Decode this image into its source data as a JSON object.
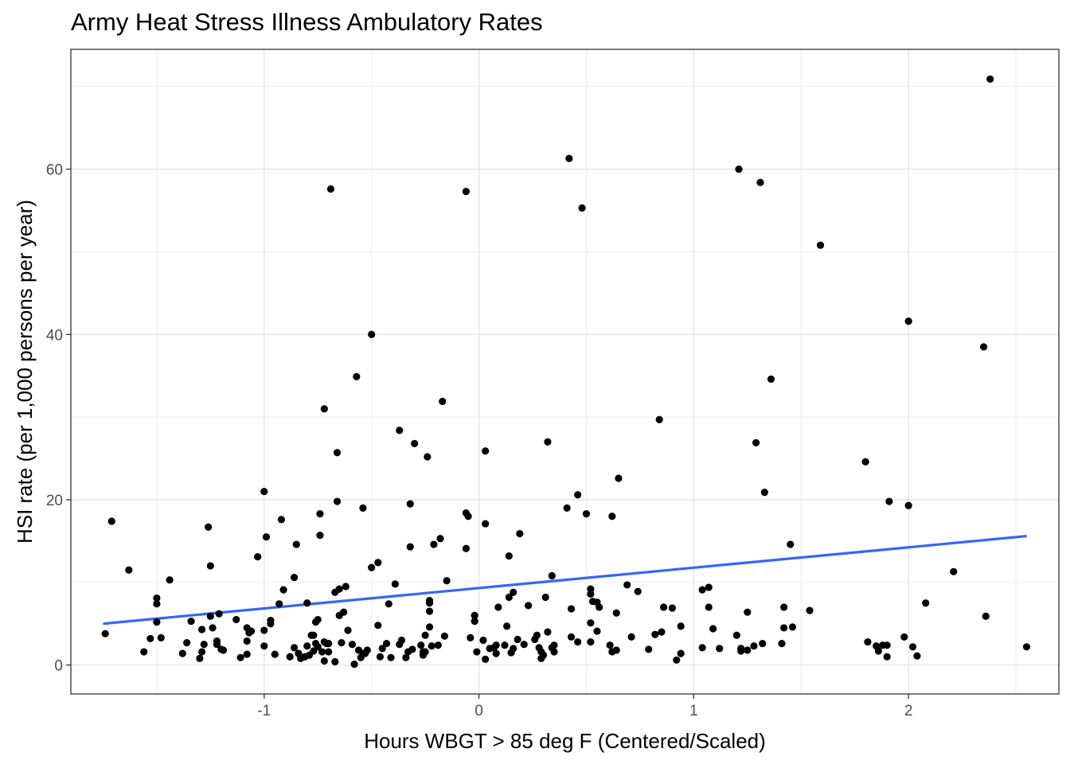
{
  "chart_data": {
    "type": "scatter",
    "title": "Army Heat Stress Illness Ambulatory Rates",
    "xlabel": "Hours WBGT > 85 deg F (Centered/Scaled)",
    "ylabel": "HSI rate (per 1,000 persons per year)",
    "xlim": [
      -1.9,
      2.7
    ],
    "ylim": [
      -3.5,
      74.5
    ],
    "x_ticks": [
      -1,
      0,
      1,
      2
    ],
    "x_tick_labels": [
      "-1",
      "0",
      "1",
      "2"
    ],
    "y_ticks": [
      0,
      20,
      40,
      60
    ],
    "y_tick_labels": [
      "0",
      "20",
      "40",
      "60"
    ],
    "grid": true,
    "point_color": "#000000",
    "trend_color": "#3366FF",
    "trend_line": {
      "x": [
        -1.75,
        2.55
      ],
      "y": [
        5.0,
        15.6
      ]
    },
    "points": [
      [
        -1.74,
        3.8
      ],
      [
        -1.71,
        17.4
      ],
      [
        -1.63,
        11.5
      ],
      [
        -1.56,
        1.6
      ],
      [
        -1.53,
        3.2
      ],
      [
        -1.5,
        8.1
      ],
      [
        -1.5,
        7.4
      ],
      [
        -1.5,
        5.2
      ],
      [
        -1.48,
        3.3
      ],
      [
        -1.44,
        10.3
      ],
      [
        -1.38,
        1.4
      ],
      [
        -1.36,
        2.7
      ],
      [
        -1.34,
        5.3
      ],
      [
        -1.3,
        0.8
      ],
      [
        -1.29,
        1.6
      ],
      [
        -1.29,
        4.3
      ],
      [
        -1.28,
        2.5
      ],
      [
        -1.26,
        16.7
      ],
      [
        -1.25,
        5.9
      ],
      [
        -1.25,
        12.0
      ],
      [
        -1.24,
        4.5
      ],
      [
        -1.22,
        2.9
      ],
      [
        -1.22,
        2.5
      ],
      [
        -1.21,
        6.2
      ],
      [
        -1.2,
        1.9
      ],
      [
        -1.19,
        1.8
      ],
      [
        -1.13,
        5.5
      ],
      [
        -1.11,
        0.9
      ],
      [
        -1.08,
        1.3
      ],
      [
        -1.08,
        2.9
      ],
      [
        -1.08,
        4.5
      ],
      [
        -1.07,
        3.9
      ],
      [
        -1.06,
        4.1
      ],
      [
        -1.03,
        13.1
      ],
      [
        -1.0,
        2.3
      ],
      [
        -1.0,
        21.0
      ],
      [
        -1.0,
        4.2
      ],
      [
        -0.99,
        15.5
      ],
      [
        -0.97,
        5.0
      ],
      [
        -0.97,
        5.4
      ],
      [
        -0.95,
        1.3
      ],
      [
        -0.93,
        7.4
      ],
      [
        -0.92,
        17.6
      ],
      [
        -0.91,
        9.1
      ],
      [
        -0.88,
        1.0
      ],
      [
        -0.86,
        2.1
      ],
      [
        -0.86,
        10.6
      ],
      [
        -0.85,
        14.6
      ],
      [
        -0.84,
        1.4
      ],
      [
        -0.83,
        0.8
      ],
      [
        -0.81,
        1.0
      ],
      [
        -0.8,
        2.3
      ],
      [
        -0.8,
        7.5
      ],
      [
        -0.79,
        1.2
      ],
      [
        -0.78,
        3.6
      ],
      [
        -0.77,
        3.6
      ],
      [
        -0.77,
        1.7
      ],
      [
        -0.76,
        2.6
      ],
      [
        -0.76,
        5.2
      ],
      [
        -0.75,
        5.5
      ],
      [
        -0.75,
        2.2
      ],
      [
        -0.74,
        15.7
      ],
      [
        -0.74,
        18.3
      ],
      [
        -0.73,
        1.6
      ],
      [
        -0.72,
        0.5
      ],
      [
        -0.72,
        2.8
      ],
      [
        -0.72,
        31.0
      ],
      [
        -0.71,
        2.6
      ],
      [
        -0.7,
        1.6
      ],
      [
        -0.7,
        2.6
      ],
      [
        -0.69,
        57.6
      ],
      [
        -0.67,
        0.4
      ],
      [
        -0.67,
        8.8
      ],
      [
        -0.66,
        19.8
      ],
      [
        -0.66,
        25.7
      ],
      [
        -0.65,
        6.0
      ],
      [
        -0.65,
        9.2
      ],
      [
        -0.64,
        2.7
      ],
      [
        -0.63,
        6.4
      ],
      [
        -0.62,
        9.5
      ],
      [
        -0.61,
        4.2
      ],
      [
        -0.59,
        2.5
      ],
      [
        -0.58,
        0.1
      ],
      [
        -0.57,
        34.9
      ],
      [
        -0.56,
        1.8
      ],
      [
        -0.55,
        0.9
      ],
      [
        -0.54,
        1.4
      ],
      [
        -0.54,
        19.0
      ],
      [
        -0.53,
        1.4
      ],
      [
        -0.52,
        1.8
      ],
      [
        -0.5,
        11.8
      ],
      [
        -0.5,
        40.0
      ],
      [
        -0.47,
        4.8
      ],
      [
        -0.47,
        12.4
      ],
      [
        -0.46,
        1.0
      ],
      [
        -0.45,
        2.0
      ],
      [
        -0.43,
        2.6
      ],
      [
        -0.42,
        7.4
      ],
      [
        -0.41,
        0.9
      ],
      [
        -0.39,
        9.8
      ],
      [
        -0.37,
        28.4
      ],
      [
        -0.37,
        2.5
      ],
      [
        -0.36,
        3.0
      ],
      [
        -0.34,
        0.9
      ],
      [
        -0.33,
        1.6
      ],
      [
        -0.32,
        14.3
      ],
      [
        -0.32,
        19.5
      ],
      [
        -0.31,
        1.9
      ],
      [
        -0.3,
        26.8
      ],
      [
        -0.27,
        2.4
      ],
      [
        -0.26,
        1.6
      ],
      [
        -0.26,
        1.2
      ],
      [
        -0.25,
        3.6
      ],
      [
        -0.25,
        1.6
      ],
      [
        -0.24,
        25.2
      ],
      [
        -0.23,
        6.5
      ],
      [
        -0.23,
        7.5
      ],
      [
        -0.23,
        7.8
      ],
      [
        -0.23,
        4.6
      ],
      [
        -0.22,
        2.3
      ],
      [
        -0.21,
        14.6
      ],
      [
        -0.19,
        2.4
      ],
      [
        -0.18,
        15.3
      ],
      [
        -0.17,
        31.9
      ],
      [
        -0.16,
        3.5
      ],
      [
        -0.15,
        10.2
      ],
      [
        -0.06,
        18.4
      ],
      [
        -0.06,
        14.1
      ],
      [
        -0.06,
        57.3
      ],
      [
        -0.05,
        18.0
      ],
      [
        -0.04,
        3.3
      ],
      [
        -0.02,
        6.0
      ],
      [
        -0.02,
        5.3
      ],
      [
        -0.01,
        1.6
      ],
      [
        0.02,
        3.0
      ],
      [
        0.03,
        0.7
      ],
      [
        0.03,
        17.1
      ],
      [
        0.03,
        25.9
      ],
      [
        0.05,
        2.0
      ],
      [
        0.07,
        2.1
      ],
      [
        0.08,
        1.4
      ],
      [
        0.08,
        2.4
      ],
      [
        0.09,
        7.0
      ],
      [
        0.12,
        2.4
      ],
      [
        0.13,
        4.7
      ],
      [
        0.14,
        13.2
      ],
      [
        0.14,
        8.2
      ],
      [
        0.15,
        1.5
      ],
      [
        0.16,
        8.8
      ],
      [
        0.16,
        2.0
      ],
      [
        0.18,
        3.1
      ],
      [
        0.19,
        15.9
      ],
      [
        0.21,
        2.5
      ],
      [
        0.23,
        7.2
      ],
      [
        0.26,
        3.1
      ],
      [
        0.27,
        3.6
      ],
      [
        0.28,
        2.1
      ],
      [
        0.29,
        1.6
      ],
      [
        0.29,
        0.8
      ],
      [
        0.3,
        1.2
      ],
      [
        0.31,
        8.2
      ],
      [
        0.32,
        27.0
      ],
      [
        0.32,
        4.0
      ],
      [
        0.34,
        10.8
      ],
      [
        0.34,
        2.1
      ],
      [
        0.35,
        2.4
      ],
      [
        0.35,
        1.6
      ],
      [
        0.41,
        19.0
      ],
      [
        0.42,
        61.3
      ],
      [
        0.43,
        3.4
      ],
      [
        0.43,
        6.8
      ],
      [
        0.46,
        20.6
      ],
      [
        0.46,
        2.8
      ],
      [
        0.48,
        55.3
      ],
      [
        0.5,
        18.3
      ],
      [
        0.52,
        9.2
      ],
      [
        0.52,
        8.6
      ],
      [
        0.52,
        2.8
      ],
      [
        0.52,
        5.1
      ],
      [
        0.53,
        7.7
      ],
      [
        0.55,
        7.6
      ],
      [
        0.55,
        4.1
      ],
      [
        0.56,
        7.0
      ],
      [
        0.61,
        2.4
      ],
      [
        0.62,
        18.0
      ],
      [
        0.62,
        1.6
      ],
      [
        0.64,
        6.3
      ],
      [
        0.64,
        1.8
      ],
      [
        0.65,
        22.6
      ],
      [
        0.69,
        9.7
      ],
      [
        0.71,
        3.4
      ],
      [
        0.74,
        8.9
      ],
      [
        0.79,
        1.9
      ],
      [
        0.82,
        3.7
      ],
      [
        0.84,
        29.7
      ],
      [
        0.85,
        4.0
      ],
      [
        0.86,
        7.0
      ],
      [
        0.9,
        6.9
      ],
      [
        0.92,
        0.6
      ],
      [
        0.94,
        1.4
      ],
      [
        0.94,
        4.7
      ],
      [
        1.04,
        2.1
      ],
      [
        1.04,
        9.1
      ],
      [
        1.07,
        9.4
      ],
      [
        1.07,
        7.0
      ],
      [
        1.09,
        4.4
      ],
      [
        1.12,
        2.0
      ],
      [
        1.2,
        3.6
      ],
      [
        1.21,
        60.0
      ],
      [
        1.22,
        1.7
      ],
      [
        1.22,
        2.0
      ],
      [
        1.25,
        6.4
      ],
      [
        1.25,
        1.8
      ],
      [
        1.28,
        2.3
      ],
      [
        1.29,
        26.9
      ],
      [
        1.31,
        58.4
      ],
      [
        1.32,
        2.6
      ],
      [
        1.33,
        20.9
      ],
      [
        1.36,
        34.6
      ],
      [
        1.41,
        2.6
      ],
      [
        1.42,
        7.0
      ],
      [
        1.42,
        4.5
      ],
      [
        1.45,
        14.6
      ],
      [
        1.46,
        4.6
      ],
      [
        1.54,
        6.6
      ],
      [
        1.59,
        50.8
      ],
      [
        1.8,
        24.6
      ],
      [
        1.81,
        2.8
      ],
      [
        1.85,
        2.3
      ],
      [
        1.86,
        1.7
      ],
      [
        1.88,
        2.4
      ],
      [
        1.9,
        2.4
      ],
      [
        1.9,
        1.0
      ],
      [
        1.91,
        19.8
      ],
      [
        1.98,
        3.4
      ],
      [
        2.0,
        41.6
      ],
      [
        2.0,
        19.3
      ],
      [
        2.02,
        2.2
      ],
      [
        2.04,
        1.1
      ],
      [
        2.08,
        7.5
      ],
      [
        2.21,
        11.3
      ],
      [
        2.35,
        38.5
      ],
      [
        2.36,
        5.9
      ],
      [
        2.38,
        70.9
      ],
      [
        2.55,
        2.2
      ]
    ]
  }
}
